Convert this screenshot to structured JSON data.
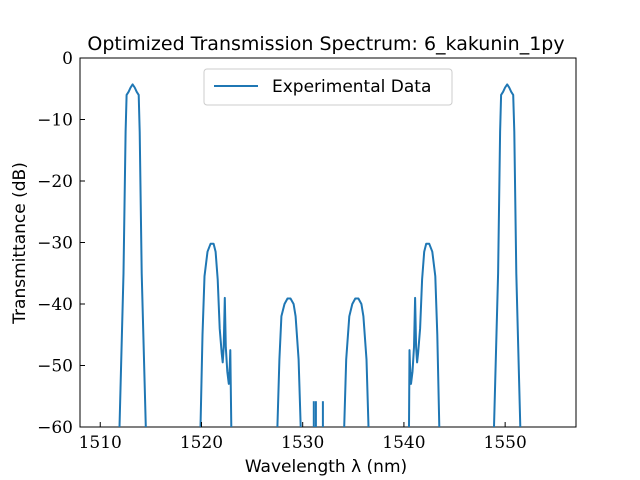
{
  "chart_data": {
    "type": "line",
    "title": "Optimized Transmission Spectrum: 6_kakunin_1py",
    "xlabel": "Wavelength λ (nm)",
    "ylabel": "Transmittance (dB)",
    "xlim": [
      1508,
      1557
    ],
    "ylim": [
      -60,
      0
    ],
    "xticks": [
      1510,
      1520,
      1530,
      1540,
      1550
    ],
    "yticks": [
      0,
      -10,
      -20,
      -30,
      -40,
      -50,
      -60
    ],
    "ytick_labels": [
      "0",
      "−10",
      "−20",
      "−30",
      "−40",
      "−50",
      "−60"
    ],
    "grid": false,
    "legend": {
      "position": "top-center",
      "entries": [
        "Experimental Data"
      ]
    },
    "line_color": "#1f77b4",
    "series": [
      {
        "name": "Experimental Data",
        "segments": [
          [
            [
              1511.9,
              -60
            ],
            [
              1512.3,
              -35
            ],
            [
              1512.5,
              -12
            ],
            [
              1512.6,
              -6
            ],
            [
              1512.8,
              -5.5
            ],
            [
              1513.0,
              -4.8
            ],
            [
              1513.2,
              -4.3
            ],
            [
              1513.4,
              -4.8
            ],
            [
              1513.6,
              -5.5
            ],
            [
              1513.8,
              -6
            ],
            [
              1513.9,
              -12
            ],
            [
              1514.1,
              -35
            ],
            [
              1514.5,
              -60
            ]
          ],
          [
            [
              1519.9,
              -60
            ],
            [
              1520.1,
              -45
            ],
            [
              1520.3,
              -35.5
            ],
            [
              1520.6,
              -31.5
            ],
            [
              1520.9,
              -30.2
            ],
            [
              1521.2,
              -30.2
            ],
            [
              1521.4,
              -31.5
            ],
            [
              1521.6,
              -36
            ],
            [
              1521.8,
              -44
            ],
            [
              1522.0,
              -48
            ],
            [
              1522.1,
              -49.5
            ],
            [
              1522.2,
              -47
            ],
            [
              1522.3,
              -39
            ],
            [
              1522.4,
              -47
            ],
            [
              1522.55,
              -51
            ],
            [
              1522.7,
              -53
            ],
            [
              1522.8,
              -50
            ],
            [
              1522.85,
              -47.5
            ],
            [
              1522.95,
              -60
            ]
          ],
          [
            [
              1527.5,
              -60
            ],
            [
              1527.7,
              -49
            ],
            [
              1527.9,
              -42
            ],
            [
              1528.2,
              -40
            ],
            [
              1528.5,
              -39.1
            ],
            [
              1528.8,
              -39.1
            ],
            [
              1529.1,
              -40
            ],
            [
              1529.3,
              -42
            ],
            [
              1529.6,
              -49
            ],
            [
              1529.8,
              -60
            ]
          ],
          [
            [
              1531.1,
              -55.8
            ],
            [
              1531.1,
              -60
            ]
          ],
          [
            [
              1531.3,
              -55.8
            ],
            [
              1531.3,
              -60
            ]
          ],
          [
            [
              1532.0,
              -55.8
            ],
            [
              1532.0,
              -60
            ]
          ],
          [
            [
              1534.1,
              -60
            ],
            [
              1534.3,
              -49
            ],
            [
              1534.6,
              -42
            ],
            [
              1534.9,
              -40
            ],
            [
              1535.2,
              -39.1
            ],
            [
              1535.5,
              -39.1
            ],
            [
              1535.8,
              -40
            ],
            [
              1536.0,
              -42
            ],
            [
              1536.3,
              -49
            ],
            [
              1536.5,
              -60
            ]
          ],
          [
            [
              1540.5,
              -60
            ],
            [
              1540.55,
              -47.5
            ],
            [
              1540.6,
              -50
            ],
            [
              1540.7,
              -53
            ],
            [
              1540.85,
              -51
            ],
            [
              1541.0,
              -47
            ],
            [
              1541.1,
              -39
            ],
            [
              1541.2,
              -47
            ],
            [
              1541.3,
              -49.5
            ],
            [
              1541.4,
              -48
            ],
            [
              1541.6,
              -44
            ],
            [
              1541.8,
              -36
            ],
            [
              1542.0,
              -31.5
            ],
            [
              1542.2,
              -30.2
            ],
            [
              1542.5,
              -30.2
            ],
            [
              1542.8,
              -31.5
            ],
            [
              1543.1,
              -35.5
            ],
            [
              1543.3,
              -45
            ],
            [
              1543.5,
              -60
            ]
          ],
          [
            [
              1548.9,
              -60
            ],
            [
              1549.3,
              -35
            ],
            [
              1549.5,
              -12
            ],
            [
              1549.6,
              -6
            ],
            [
              1549.8,
              -5.5
            ],
            [
              1550.0,
              -4.8
            ],
            [
              1550.2,
              -4.3
            ],
            [
              1550.4,
              -4.8
            ],
            [
              1550.6,
              -5.5
            ],
            [
              1550.8,
              -6
            ],
            [
              1550.9,
              -12
            ],
            [
              1551.1,
              -35
            ],
            [
              1551.5,
              -60
            ]
          ]
        ]
      }
    ]
  }
}
